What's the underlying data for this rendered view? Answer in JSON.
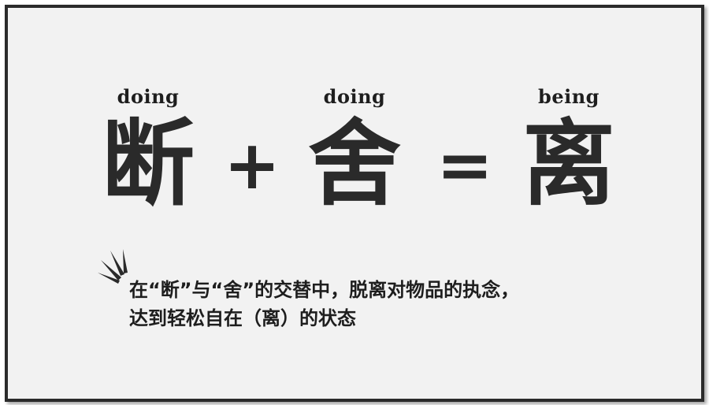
{
  "equation": {
    "term1": {
      "word": "doing",
      "char": "断"
    },
    "plus": "+",
    "term2": {
      "word": "doing",
      "char": "舍"
    },
    "equals": "=",
    "term3": {
      "word": "being",
      "char": "离"
    }
  },
  "description": {
    "line1": "在“断”与“舍”的交替中，脱离对物品的执念，",
    "line2": "达到轻松自在（离）的状态"
  },
  "colors": {
    "text": "#2a2a2a",
    "border": "#2b2b2b",
    "background": "#f2f2f2"
  },
  "icons": [
    "burst-icon"
  ]
}
